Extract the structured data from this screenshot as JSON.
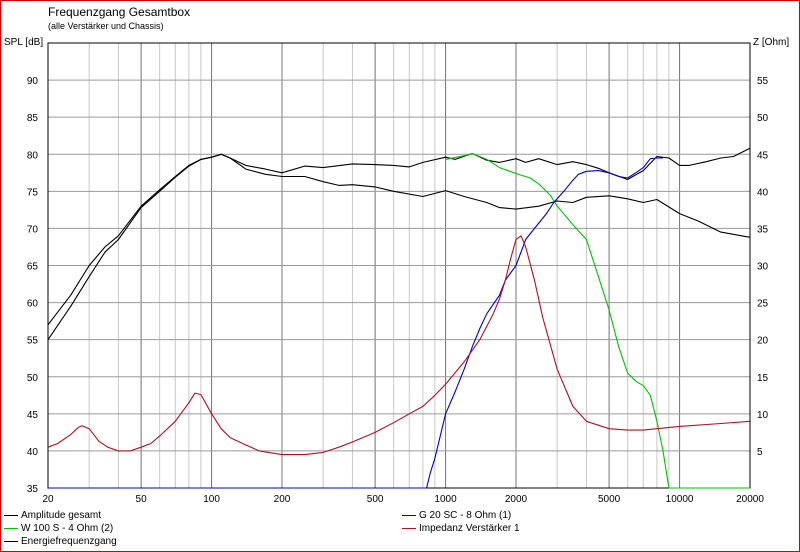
{
  "chart_data": {
    "type": "line",
    "title": "Frequenzgang Gesamtbox",
    "subtitle": "(alle Verstärker und Chassis)",
    "ylabel": "SPL [dB]",
    "y2label": "Z [Ohm]",
    "xscale": "log",
    "xlim": [
      20,
      20000
    ],
    "ylim": [
      35,
      95
    ],
    "y2lim": [
      0,
      60
    ],
    "grid": true,
    "x_ticks": [
      20,
      50,
      100,
      200,
      500,
      1000,
      2000,
      5000,
      10000,
      20000
    ],
    "x_tick_labels": [
      "20",
      "50",
      "100",
      "200",
      "500",
      "1000",
      "2000",
      "5000",
      "10000",
      "20000"
    ],
    "y_ticks": [
      35,
      40,
      45,
      50,
      55,
      60,
      65,
      70,
      75,
      80,
      85,
      90
    ],
    "y_tick_labels": [
      "35",
      "40",
      "45",
      "50",
      "55",
      "60",
      "65",
      "70",
      "75",
      "80",
      "85",
      "90"
    ],
    "y2_ticks": [
      5,
      10,
      15,
      20,
      25,
      30,
      35,
      40,
      45,
      50,
      55
    ],
    "y2_tick_labels": [
      "5",
      "10",
      "15",
      "20",
      "25",
      "30",
      "35",
      "40",
      "45",
      "50",
      "55"
    ],
    "series": [
      {
        "name": "Amplitude gesamt",
        "axis": "left",
        "color": "#000000",
        "points": [
          [
            20,
            57
          ],
          [
            25,
            61
          ],
          [
            30,
            65
          ],
          [
            35,
            67.5
          ],
          [
            40,
            69
          ],
          [
            50,
            73
          ],
          [
            60,
            75.2
          ],
          [
            70,
            77
          ],
          [
            80,
            78.5
          ],
          [
            90,
            79.3
          ],
          [
            100,
            79.6
          ],
          [
            110,
            80
          ],
          [
            120,
            79.5
          ],
          [
            140,
            78.5
          ],
          [
            170,
            78
          ],
          [
            200,
            77.5
          ],
          [
            250,
            78.4
          ],
          [
            300,
            78.2
          ],
          [
            400,
            78.7
          ],
          [
            500,
            78.6
          ],
          [
            600,
            78.5
          ],
          [
            700,
            78.3
          ],
          [
            800,
            78.9
          ],
          [
            1000,
            79.6
          ],
          [
            1100,
            79.3
          ],
          [
            1300,
            80.1
          ],
          [
            1500,
            79.2
          ],
          [
            1700,
            78.9
          ],
          [
            2000,
            79.4
          ],
          [
            2200,
            78.9
          ],
          [
            2500,
            79.4
          ],
          [
            3000,
            78.6
          ],
          [
            3500,
            79
          ],
          [
            4000,
            78.6
          ],
          [
            4500,
            78.1
          ],
          [
            5000,
            77.5
          ],
          [
            6000,
            76.6
          ],
          [
            7000,
            77.8
          ],
          [
            8000,
            79.7
          ],
          [
            9000,
            79.5
          ],
          [
            10000,
            78.5
          ],
          [
            11000,
            78.5
          ],
          [
            13000,
            79
          ],
          [
            15000,
            79.5
          ],
          [
            17000,
            79.7
          ],
          [
            20000,
            80.8
          ]
        ]
      },
      {
        "name": "Energiefrequenzgang",
        "axis": "left",
        "color": "#000000",
        "points": [
          [
            20,
            55
          ],
          [
            25,
            59.5
          ],
          [
            30,
            63.5
          ],
          [
            35,
            66.8
          ],
          [
            40,
            68.5
          ],
          [
            50,
            72.8
          ],
          [
            60,
            75
          ],
          [
            70,
            76.9
          ],
          [
            80,
            78.4
          ],
          [
            90,
            79.3
          ],
          [
            100,
            79.6
          ],
          [
            110,
            80
          ],
          [
            120,
            79.5
          ],
          [
            140,
            78
          ],
          [
            170,
            77.3
          ],
          [
            200,
            77
          ],
          [
            250,
            77
          ],
          [
            300,
            76.3
          ],
          [
            350,
            75.8
          ],
          [
            400,
            75.9
          ],
          [
            500,
            75.6
          ],
          [
            600,
            75
          ],
          [
            800,
            74.3
          ],
          [
            1000,
            75.1
          ],
          [
            1200,
            74.3
          ],
          [
            1500,
            73.5
          ],
          [
            1700,
            72.8
          ],
          [
            2000,
            72.6
          ],
          [
            2500,
            73
          ],
          [
            3000,
            73.7
          ],
          [
            3500,
            73.5
          ],
          [
            4000,
            74.2
          ],
          [
            5000,
            74.4
          ],
          [
            6000,
            74
          ],
          [
            7000,
            73.5
          ],
          [
            8000,
            73.9
          ],
          [
            10000,
            72
          ],
          [
            12000,
            71
          ],
          [
            15000,
            69.5
          ],
          [
            20000,
            68.8
          ]
        ]
      },
      {
        "name": "W 100 S - 4 Ohm (2)",
        "axis": "left",
        "color": "#00c000",
        "points": [
          [
            1000,
            79.3
          ],
          [
            1200,
            79.8
          ],
          [
            1300,
            80.1
          ],
          [
            1500,
            79.3
          ],
          [
            1700,
            78.2
          ],
          [
            2000,
            77.4
          ],
          [
            2300,
            76.8
          ],
          [
            2500,
            76
          ],
          [
            2800,
            74.5
          ],
          [
            3000,
            73
          ],
          [
            3500,
            70.5
          ],
          [
            4000,
            68.5
          ],
          [
            4500,
            63.5
          ],
          [
            5000,
            59
          ],
          [
            5500,
            54
          ],
          [
            6000,
            50.5
          ],
          [
            6500,
            49.4
          ],
          [
            7000,
            48.8
          ],
          [
            7500,
            47.5
          ],
          [
            8000,
            44
          ],
          [
            8500,
            40
          ],
          [
            9000,
            35
          ],
          [
            10000,
            35
          ],
          [
            20000,
            35
          ]
        ]
      },
      {
        "name": "G 20 SC - 8 Ohm (1)",
        "axis": "left",
        "color": "#0000c8",
        "points": [
          [
            20,
            35
          ],
          [
            830,
            35
          ],
          [
            860,
            37
          ],
          [
            900,
            39
          ],
          [
            1000,
            45
          ],
          [
            1100,
            48
          ],
          [
            1200,
            51
          ],
          [
            1300,
            54
          ],
          [
            1400,
            56.5
          ],
          [
            1500,
            58.5
          ],
          [
            1700,
            61
          ],
          [
            1800,
            63
          ],
          [
            2000,
            65
          ],
          [
            2200,
            68.5
          ],
          [
            2400,
            70
          ],
          [
            2700,
            72
          ],
          [
            2900,
            73.5
          ],
          [
            3200,
            75
          ],
          [
            3500,
            76.5
          ],
          [
            3700,
            77.3
          ],
          [
            4000,
            77.7
          ],
          [
            4500,
            77.8
          ],
          [
            5000,
            77.5
          ],
          [
            5500,
            77
          ],
          [
            6000,
            76.8
          ],
          [
            6500,
            77.5
          ],
          [
            7000,
            78.2
          ],
          [
            7500,
            79.4
          ],
          [
            8000,
            79.5
          ],
          [
            8500,
            79.5
          ]
        ]
      },
      {
        "name": "Impedanz Verstärker 1",
        "axis": "right",
        "color": "#b01020",
        "points": [
          [
            20,
            5.5
          ],
          [
            22,
            6
          ],
          [
            25,
            7.2
          ],
          [
            27,
            8.2
          ],
          [
            28,
            8.4
          ],
          [
            30,
            8
          ],
          [
            33,
            6.3
          ],
          [
            36,
            5.5
          ],
          [
            40,
            5
          ],
          [
            45,
            5
          ],
          [
            50,
            5.5
          ],
          [
            55,
            6
          ],
          [
            60,
            7
          ],
          [
            70,
            9
          ],
          [
            80,
            11.5
          ],
          [
            85,
            12.8
          ],
          [
            90,
            12.6
          ],
          [
            100,
            10
          ],
          [
            110,
            8
          ],
          [
            120,
            6.8
          ],
          [
            140,
            5.8
          ],
          [
            160,
            5
          ],
          [
            200,
            4.5
          ],
          [
            250,
            4.5
          ],
          [
            300,
            4.8
          ],
          [
            350,
            5.5
          ],
          [
            400,
            6.2
          ],
          [
            500,
            7.5
          ],
          [
            600,
            8.8
          ],
          [
            700,
            10
          ],
          [
            800,
            11
          ],
          [
            900,
            12.5
          ],
          [
            1000,
            14
          ],
          [
            1200,
            17
          ],
          [
            1400,
            20
          ],
          [
            1600,
            23.5
          ],
          [
            1700,
            25.5
          ],
          [
            1800,
            28
          ],
          [
            1900,
            31
          ],
          [
            2000,
            33.5
          ],
          [
            2100,
            34
          ],
          [
            2200,
            32.5
          ],
          [
            2400,
            28
          ],
          [
            2600,
            23
          ],
          [
            3000,
            16
          ],
          [
            3500,
            11
          ],
          [
            4000,
            9
          ],
          [
            5000,
            8
          ],
          [
            6000,
            7.8
          ],
          [
            7000,
            7.8
          ],
          [
            8000,
            8
          ],
          [
            10000,
            8.3
          ],
          [
            15000,
            8.7
          ],
          [
            20000,
            9
          ]
        ]
      }
    ]
  },
  "legend": [
    {
      "label": "Amplitude gesamt",
      "color": "#000000"
    },
    {
      "label": "W 100 S - 4 Ohm (2)",
      "color": "#00c000"
    },
    {
      "label": "Energiefrequenzgang",
      "color": "#000000"
    },
    {
      "label": "G 20 SC - 8 Ohm (1)",
      "color": "#0000c8"
    },
    {
      "label": "Impedanz Verstärker 1",
      "color": "#b01020"
    }
  ]
}
